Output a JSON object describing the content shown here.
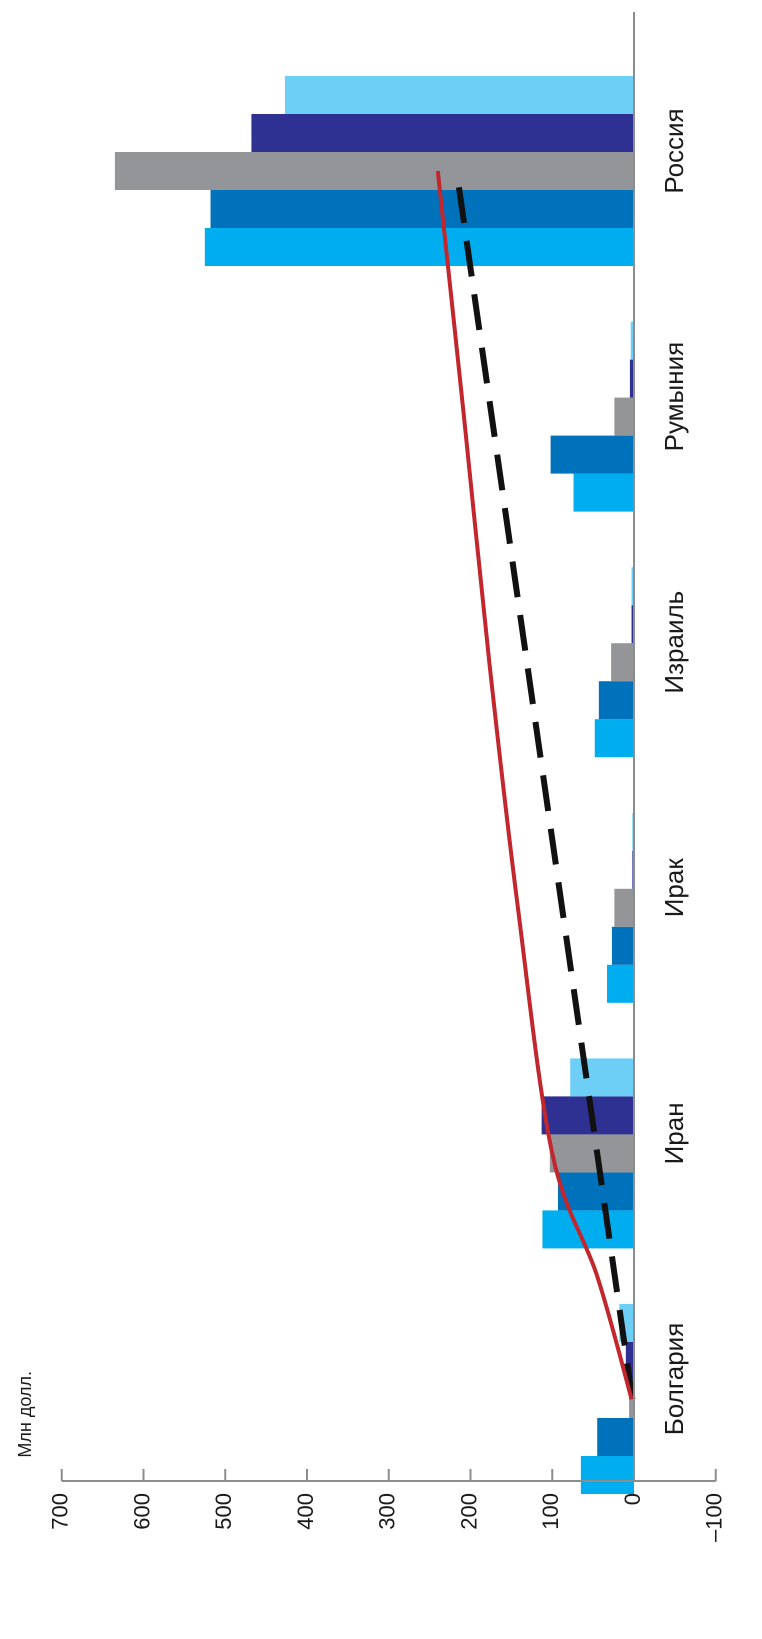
{
  "chart_data": {
    "type": "bar",
    "orientation": "horizontal",
    "ylabel": "Млн долл.",
    "xlim": [
      -100,
      700
    ],
    "ticks": [
      "700",
      "600",
      "500",
      "400",
      "300",
      "200",
      "100",
      "0",
      "–100"
    ],
    "tick_values": [
      700,
      600,
      500,
      400,
      300,
      200,
      100,
      0,
      -100
    ],
    "categories": [
      "Болгария",
      "Иран",
      "Ирак",
      "Израиль",
      "Румыния",
      "Россия"
    ],
    "series": [
      {
        "color": "#00aeef",
        "values": [
          65,
          112,
          33,
          48,
          74,
          525
        ]
      },
      {
        "color": "#0072bc",
        "values": [
          45,
          93,
          27,
          43,
          102,
          518
        ]
      },
      {
        "color": "#939598",
        "values": [
          6,
          103,
          24,
          28,
          24,
          635
        ]
      },
      {
        "color": "#2e3192",
        "values": [
          10,
          113,
          2,
          3,
          5,
          468
        ]
      },
      {
        "color": "#6dcff6",
        "values": [
          18,
          78,
          2,
          3,
          4,
          427
        ]
      }
    ],
    "trendlines": [
      {
        "style": "dashed",
        "color": "#111111",
        "points": [
          [
            1,
            2
          ],
          [
            6,
            217
          ]
        ]
      },
      {
        "style": "solid",
        "color": "#c1272d",
        "points": [
          [
            1,
            3
          ],
          [
            1.5,
            45
          ],
          [
            2,
            100
          ],
          [
            3,
            142
          ],
          [
            4,
            177
          ],
          [
            5,
            208
          ],
          [
            6,
            240
          ]
        ]
      }
    ]
  }
}
